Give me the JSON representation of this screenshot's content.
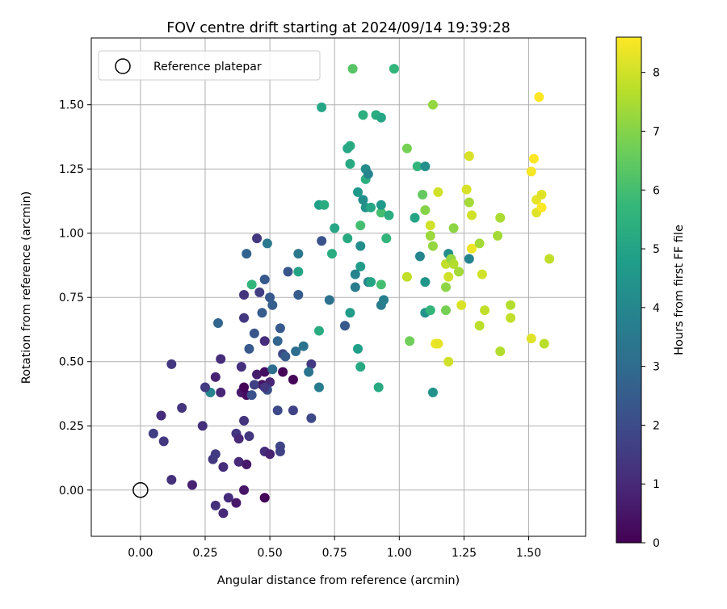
{
  "chart_data": {
    "type": "scatter",
    "title": "FOV centre drift starting at 2024/09/14 19:39:28",
    "xlabel": "Angular distance from reference (arcmin)",
    "ylabel": "Rotation from reference (arcmin)",
    "xlim": [
      -0.19,
      1.72
    ],
    "ylim": [
      -0.18,
      1.76
    ],
    "xticks": [
      0.0,
      0.25,
      0.5,
      0.75,
      1.0,
      1.25,
      1.5
    ],
    "xtick_labels": [
      "0.00",
      "0.25",
      "0.50",
      "0.75",
      "1.00",
      "1.25",
      "1.50"
    ],
    "yticks": [
      0.0,
      0.25,
      0.5,
      0.75,
      1.0,
      1.25,
      1.5
    ],
    "ytick_labels": [
      "0.00",
      "0.25",
      "0.50",
      "0.75",
      "1.00",
      "1.25",
      "1.50"
    ],
    "grid": true,
    "legend": {
      "position": "top-left",
      "label": "Reference platepar"
    },
    "reference_point": {
      "x": 0.0,
      "y": 0.0
    },
    "colorbar": {
      "label": "Hours from first FF file",
      "range": [
        0,
        8.6
      ],
      "ticks": [
        0,
        1,
        2,
        3,
        4,
        5,
        6,
        7,
        8
      ],
      "colormap": "viridis",
      "colormap_stops": [
        "#440154",
        "#482878",
        "#3e4989",
        "#31688e",
        "#26828e",
        "#1f9e89",
        "#35b779",
        "#6ece58",
        "#b5de2b",
        "#fde725"
      ]
    },
    "points": [
      [
        0.48,
        -0.03,
        0.1
      ],
      [
        0.37,
        -0.05,
        0.6
      ],
      [
        0.32,
        -0.09,
        1.0
      ],
      [
        0.29,
        -0.06,
        1.2
      ],
      [
        0.34,
        -0.03,
        1.1
      ],
      [
        0.2,
        0.02,
        0.8
      ],
      [
        0.12,
        0.04,
        1.2
      ],
      [
        0.4,
        0.0,
        0.5
      ],
      [
        0.32,
        0.09,
        1.1
      ],
      [
        0.38,
        0.11,
        1.0
      ],
      [
        0.41,
        0.1,
        0.6
      ],
      [
        0.28,
        0.12,
        1.4
      ],
      [
        0.29,
        0.14,
        1.5
      ],
      [
        0.48,
        0.15,
        1.1
      ],
      [
        0.5,
        0.14,
        0.8
      ],
      [
        0.54,
        0.17,
        1.8
      ],
      [
        0.54,
        0.15,
        1.7
      ],
      [
        0.37,
        0.22,
        1.4
      ],
      [
        0.38,
        0.2,
        1.0
      ],
      [
        0.42,
        0.21,
        1.4
      ],
      [
        0.09,
        0.19,
        1.4
      ],
      [
        0.05,
        0.22,
        1.6
      ],
      [
        0.08,
        0.29,
        1.1
      ],
      [
        0.16,
        0.32,
        1.3
      ],
      [
        0.24,
        0.25,
        1.2
      ],
      [
        0.4,
        0.27,
        1.3
      ],
      [
        0.53,
        0.31,
        1.9
      ],
      [
        0.59,
        0.31,
        1.7
      ],
      [
        0.66,
        0.28,
        1.9
      ],
      [
        0.69,
        0.4,
        3.6
      ],
      [
        0.27,
        0.38,
        3.9
      ],
      [
        0.31,
        0.38,
        0.9
      ],
      [
        0.25,
        0.4,
        1.5
      ],
      [
        0.29,
        0.44,
        0.8
      ],
      [
        0.31,
        0.51,
        1.1
      ],
      [
        0.39,
        0.48,
        1.2
      ],
      [
        0.39,
        0.38,
        0.6
      ],
      [
        0.41,
        0.37,
        0.3
      ],
      [
        0.4,
        0.4,
        0.1
      ],
      [
        0.45,
        0.45,
        0.7
      ],
      [
        0.47,
        0.41,
        0.4
      ],
      [
        0.44,
        0.41,
        1.7
      ],
      [
        0.43,
        0.37,
        2.2
      ],
      [
        0.48,
        0.46,
        0.3
      ],
      [
        0.5,
        0.42,
        0.9
      ],
      [
        0.49,
        0.39,
        2.1
      ],
      [
        0.48,
        0.4,
        1.4
      ],
      [
        0.51,
        0.47,
        3.1
      ],
      [
        0.55,
        0.46,
        0.1
      ],
      [
        0.59,
        0.43,
        0.1
      ],
      [
        0.55,
        0.53,
        1.9
      ],
      [
        0.56,
        0.52,
        2.5
      ],
      [
        0.6,
        0.54,
        3.1
      ],
      [
        0.63,
        0.56,
        3.3
      ],
      [
        0.66,
        0.49,
        1.5
      ],
      [
        0.65,
        0.46,
        3.3
      ],
      [
        0.12,
        0.49,
        1.4
      ],
      [
        0.42,
        0.55,
        2.4
      ],
      [
        0.44,
        0.61,
        2.3
      ],
      [
        0.47,
        0.69,
        2.5
      ],
      [
        0.48,
        0.58,
        1.1
      ],
      [
        0.53,
        0.58,
        2.8
      ],
      [
        0.54,
        0.63,
        2.4
      ],
      [
        0.5,
        0.75,
        2.4
      ],
      [
        0.51,
        0.72,
        2.6
      ],
      [
        0.46,
        0.77,
        1.6
      ],
      [
        0.48,
        0.82,
        2.4
      ],
      [
        0.4,
        0.76,
        1.3
      ],
      [
        0.4,
        0.67,
        1.4
      ],
      [
        0.3,
        0.65,
        2.8
      ],
      [
        0.43,
        0.8,
        5.6
      ],
      [
        0.57,
        0.85,
        2.3
      ],
      [
        0.61,
        0.85,
        5.0
      ],
      [
        0.61,
        0.76,
        2.5
      ],
      [
        0.61,
        0.92,
        3.4
      ],
      [
        0.45,
        0.98,
        1.4
      ],
      [
        0.49,
        0.96,
        3.5
      ],
      [
        0.41,
        0.92,
        2.7
      ],
      [
        0.7,
        0.97,
        2.2
      ],
      [
        0.73,
        0.74,
        3.2
      ],
      [
        0.69,
        0.62,
        5.3
      ],
      [
        0.74,
        0.92,
        5.3
      ],
      [
        0.75,
        1.02,
        5.1
      ],
      [
        0.69,
        1.11,
        4.8
      ],
      [
        0.71,
        1.11,
        5.3
      ],
      [
        0.79,
        0.64,
        2.4
      ],
      [
        0.8,
        0.98,
        5.2
      ],
      [
        0.81,
        0.69,
        4.7
      ],
      [
        0.83,
        0.79,
        3.6
      ],
      [
        0.83,
        0.84,
        3.9
      ],
      [
        0.85,
        0.87,
        4.7
      ],
      [
        0.85,
        0.95,
        4.2
      ],
      [
        0.85,
        1.03,
        6.0
      ],
      [
        0.87,
        1.1,
        4.4
      ],
      [
        0.86,
        1.13,
        4.2
      ],
      [
        0.84,
        1.16,
        4.6
      ],
      [
        0.88,
        0.81,
        3.9
      ],
      [
        0.89,
        0.81,
        5.0
      ],
      [
        0.84,
        0.55,
        4.8
      ],
      [
        0.85,
        0.48,
        5.2
      ],
      [
        0.92,
        0.4,
        5.2
      ],
      [
        0.93,
        0.72,
        3.6
      ],
      [
        0.94,
        0.74,
        3.7
      ],
      [
        0.93,
        0.8,
        6.0
      ],
      [
        0.93,
        1.08,
        6.0
      ],
      [
        0.93,
        1.11,
        4.6
      ],
      [
        0.89,
        1.1,
        5.1
      ],
      [
        0.87,
        1.21,
        5.4
      ],
      [
        0.87,
        1.25,
        4.2
      ],
      [
        0.88,
        1.23,
        3.9
      ],
      [
        0.81,
        1.27,
        5.2
      ],
      [
        0.8,
        1.33,
        5.1
      ],
      [
        0.81,
        1.34,
        5.2
      ],
      [
        0.96,
        1.07,
        5.3
      ],
      [
        0.95,
        0.98,
        5.6
      ],
      [
        0.91,
        1.46,
        5.3
      ],
      [
        0.93,
        1.45,
        5.1
      ],
      [
        0.86,
        1.46,
        5.4
      ],
      [
        0.7,
        1.49,
        5.1
      ],
      [
        0.82,
        1.64,
        6.3
      ],
      [
        0.98,
        1.64,
        5.6
      ],
      [
        1.03,
        1.33,
        6.8
      ],
      [
        1.07,
        1.26,
        5.6
      ],
      [
        1.09,
        1.15,
        6.5
      ],
      [
        1.1,
        1.26,
        4.3
      ],
      [
        1.06,
        1.06,
        5.0
      ],
      [
        1.08,
        0.91,
        4.0
      ],
      [
        1.1,
        0.81,
        4.5
      ],
      [
        1.1,
        0.69,
        4.4
      ],
      [
        1.12,
        0.7,
        5.6
      ],
      [
        1.13,
        0.38,
        4.4
      ],
      [
        1.04,
        0.58,
        6.7
      ],
      [
        1.03,
        0.83,
        7.8
      ],
      [
        1.1,
        1.09,
        7.0
      ],
      [
        1.12,
        1.03,
        8.0
      ],
      [
        1.12,
        0.99,
        7.3
      ],
      [
        1.13,
        0.95,
        7.2
      ],
      [
        1.15,
        1.16,
        8.0
      ],
      [
        1.19,
        0.92,
        4.2
      ],
      [
        1.18,
        0.88,
        7.8
      ],
      [
        1.18,
        0.79,
        7.1
      ],
      [
        1.18,
        0.7,
        6.8
      ],
      [
        1.19,
        0.83,
        8.0
      ],
      [
        1.2,
        0.9,
        7.2
      ],
      [
        1.21,
        0.88,
        7.6
      ],
      [
        1.21,
        1.02,
        7.1
      ],
      [
        1.23,
        0.85,
        7.4
      ],
      [
        1.24,
        0.72,
        8.1
      ],
      [
        1.27,
        0.9,
        3.9
      ],
      [
        1.26,
        1.17,
        8.1
      ],
      [
        1.27,
        1.12,
        7.4
      ],
      [
        1.27,
        1.3,
        8.1
      ],
      [
        1.28,
        1.07,
        8.0
      ],
      [
        1.28,
        0.94,
        8.4
      ],
      [
        1.31,
        0.96,
        7.4
      ],
      [
        1.32,
        0.84,
        8.0
      ],
      [
        1.33,
        0.7,
        7.8
      ],
      [
        1.31,
        0.64,
        7.7
      ],
      [
        1.38,
        0.99,
        7.4
      ],
      [
        1.39,
        1.06,
        7.5
      ],
      [
        1.39,
        0.54,
        7.6
      ],
      [
        1.43,
        0.72,
        7.6
      ],
      [
        1.43,
        0.67,
        7.8
      ],
      [
        1.14,
        0.57,
        8.4
      ],
      [
        1.15,
        0.57,
        8.3
      ],
      [
        1.19,
        0.5,
        8.0
      ],
      [
        1.13,
        1.5,
        7.2
      ],
      [
        1.51,
        0.59,
        8.2
      ],
      [
        1.51,
        1.24,
        8.5
      ],
      [
        1.52,
        1.29,
        8.6
      ],
      [
        1.53,
        1.13,
        8.3
      ],
      [
        1.53,
        1.08,
        8.2
      ],
      [
        1.54,
        1.53,
        8.6
      ],
      [
        1.55,
        1.15,
        8.2
      ],
      [
        1.55,
        1.1,
        8.6
      ],
      [
        1.56,
        0.57,
        7.7
      ],
      [
        1.58,
        0.9,
        7.8
      ]
    ]
  }
}
